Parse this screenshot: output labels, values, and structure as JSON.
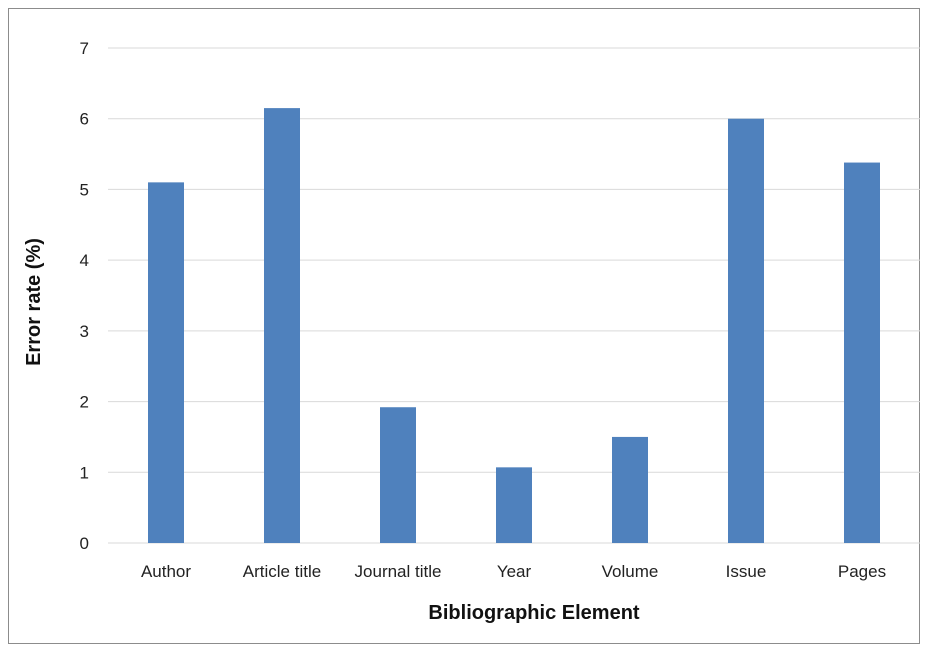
{
  "chart_data": {
    "type": "bar",
    "categories": [
      "Author",
      "Article title",
      "Journal title",
      "Year",
      "Volume",
      "Issue",
      "Pages"
    ],
    "values": [
      5.1,
      6.15,
      1.92,
      1.07,
      1.5,
      6.0,
      5.38
    ],
    "title": "",
    "xlabel": "Bibliographic Element",
    "ylabel": "Error rate (%)",
    "ylim": [
      0,
      7
    ],
    "yticks": [
      0,
      1,
      2,
      3,
      4,
      5,
      6,
      7
    ],
    "grid": true,
    "legend": "none",
    "bar_color": "#4F81BD",
    "grid_color": "#D9D9D9"
  }
}
